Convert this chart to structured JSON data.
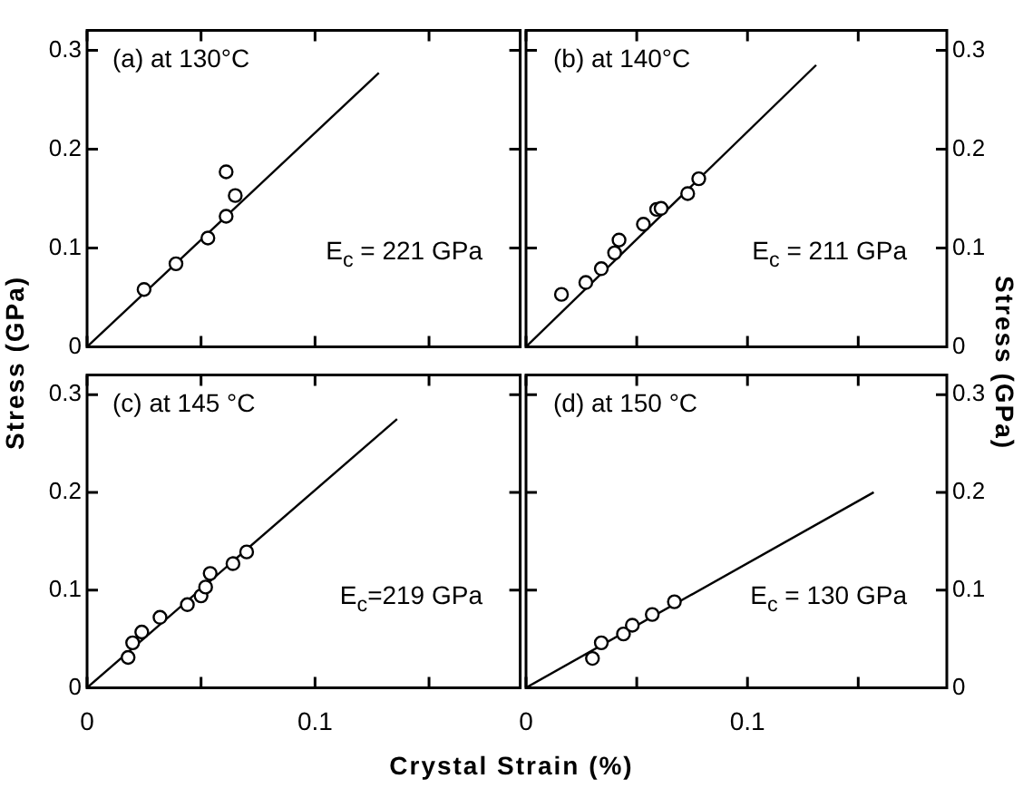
{
  "chart_data": [
    {
      "type": "scatter",
      "ylabel": "Stress (GPa)",
      "xlim": [
        0,
        0.19
      ],
      "ylim": [
        0,
        0.32
      ],
      "xticks": [
        {
          "value": 0,
          "label": null
        },
        {
          "value": 0.05,
          "label": null
        },
        {
          "value": 0.1,
          "label": null
        },
        {
          "value": 0.15,
          "label": null
        }
      ],
      "yticks": [
        0,
        0.1,
        0.2,
        0.3
      ],
      "tick_labels": "y",
      "annotations": [
        "(a) at 130°C",
        "E$_{c}$ = 221 GPa"
      ],
      "series": [
        {
          "color": "#000000",
          "marker": "circle",
          "x": [
            0.025,
            0.039,
            0.053,
            0.061,
            0.061,
            0.065
          ],
          "values": [
            0.058,
            0.084,
            0.11,
            0.132,
            0.177,
            0.153
          ]
        },
        {
          "type": "line",
          "marker": "none",
          "color": "#000000",
          "x": [
            0,
            0.128
          ],
          "values": [
            0,
            0.277
          ]
        }
      ]
    },
    {
      "type": "scatter",
      "ylabel": "Stress (GPa)",
      "xlim": [
        0,
        0.19
      ],
      "ylim": [
        0,
        0.32
      ],
      "xticks": [
        {
          "value": 0,
          "label": null
        },
        {
          "value": 0.05,
          "label": null
        },
        {
          "value": 0.1,
          "label": null
        },
        {
          "value": 0.15,
          "label": null
        }
      ],
      "yticks": [
        0,
        0.1,
        0.2,
        0.3
      ],
      "tick_labels": "y",
      "annotations": [
        "(b) at 140°C",
        "E$_{c}$ = 211 GPa"
      ],
      "series": [
        {
          "color": "#000000",
          "marker": "circle",
          "x": [
            0.016,
            0.027,
            0.034,
            0.04,
            0.042,
            0.053,
            0.059,
            0.061,
            0.073,
            0.078
          ],
          "values": [
            0.053,
            0.065,
            0.079,
            0.095,
            0.108,
            0.124,
            0.139,
            0.14,
            0.155,
            0.17
          ]
        },
        {
          "type": "line",
          "marker": "none",
          "color": "#000000",
          "x": [
            0,
            0.131
          ],
          "values": [
            0,
            0.285
          ]
        }
      ]
    },
    {
      "type": "scatter",
      "xlabel": "Crystal Strain (%)",
      "xlim": [
        0,
        0.19
      ],
      "ylim": [
        0,
        0.32
      ],
      "xticks": [
        {
          "value": 0,
          "label": "0"
        },
        {
          "value": 0.05,
          "label": null
        },
        {
          "value": 0.1,
          "label": "0.1"
        },
        {
          "value": 0.15,
          "label": null
        }
      ],
      "yticks": [
        0,
        0.1,
        0.2,
        0.3
      ],
      "annotations": [
        "(c) at 145 °C",
        "E$_{c}$=219 GPa"
      ],
      "series": [
        {
          "color": "#000000",
          "marker": "circle",
          "x": [
            0.018,
            0.02,
            0.024,
            0.032,
            0.044,
            0.05,
            0.052,
            0.054,
            0.064,
            0.07
          ],
          "values": [
            0.031,
            0.046,
            0.057,
            0.072,
            0.085,
            0.094,
            0.103,
            0.117,
            0.127,
            0.139
          ]
        },
        {
          "type": "line",
          "marker": "none",
          "color": "#000000",
          "x": [
            0,
            0.136
          ],
          "values": [
            0,
            0.275
          ]
        }
      ]
    },
    {
      "type": "scatter",
      "xlim": [
        0,
        0.19
      ],
      "ylim": [
        0,
        0.32
      ],
      "xticks": [
        {
          "value": 0,
          "label": "0"
        },
        {
          "value": 0.05,
          "label": null
        },
        {
          "value": 0.1,
          "label": "0.1"
        },
        {
          "value": 0.15,
          "label": null
        }
      ],
      "yticks": [
        0,
        0.1,
        0.2,
        0.3
      ],
      "annotations": [
        "(d) at 150 °C",
        "E$_{c}$ = 130 GPa"
      ],
      "series": [
        {
          "color": "#000000",
          "marker": "circle",
          "x": [
            0.03,
            0.034,
            0.044,
            0.048,
            0.057,
            0.067
          ],
          "values": [
            0.03,
            0.046,
            0.055,
            0.064,
            0.075,
            0.088
          ]
        },
        {
          "type": "line",
          "marker": "none",
          "color": "#000000",
          "x": [
            0,
            0.157
          ],
          "values": [
            0,
            0.2
          ]
        }
      ]
    }
  ]
}
